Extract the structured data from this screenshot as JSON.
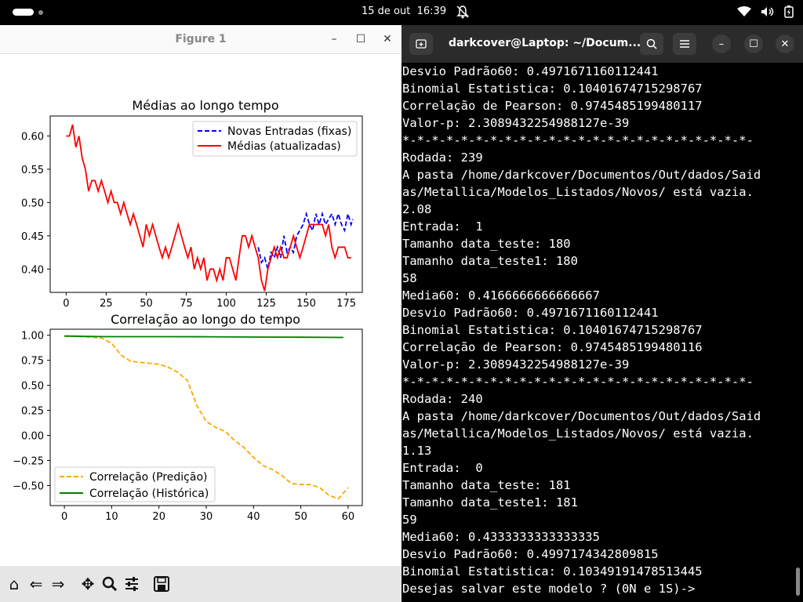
{
  "topbar": {
    "date": "15 de out",
    "time": "16:39"
  },
  "figure_window": {
    "title": "Figure 1",
    "toolbar": [
      "home-icon",
      "back-icon",
      "forward-icon",
      "pan-icon",
      "zoom-icon",
      "configure-icon",
      "save-icon"
    ]
  },
  "chart_data": [
    {
      "type": "line",
      "title": "Médias ao longo tempo",
      "xlim": [
        -10,
        185
      ],
      "ylim": [
        0.365,
        0.63
      ],
      "xticks": [
        0,
        25,
        50,
        75,
        100,
        125,
        150,
        175
      ],
      "yticks": [
        0.4,
        0.45,
        0.5,
        0.55,
        0.6
      ],
      "ytick_labels": [
        "0.40",
        "0.45",
        "0.50",
        "0.55",
        "0.60"
      ],
      "legend_position": "top-right",
      "series": [
        {
          "name": "Novas Entradas (fixas)",
          "color": "#0000ff",
          "style": "dashed",
          "x": [
            120,
            122,
            124,
            126,
            128,
            130,
            132,
            134,
            136,
            138,
            140,
            142,
            144,
            146,
            148,
            150,
            152,
            154,
            156,
            158,
            160,
            162,
            164,
            166,
            168,
            170,
            172,
            174,
            176,
            178,
            179
          ],
          "y": [
            0.433,
            0.41,
            0.417,
            0.4,
            0.425,
            0.417,
            0.433,
            0.417,
            0.45,
            0.425,
            0.433,
            0.425,
            0.45,
            0.458,
            0.467,
            0.483,
            0.467,
            0.458,
            0.483,
            0.467,
            0.483,
            0.467,
            0.475,
            0.483,
            0.467,
            0.483,
            0.467,
            0.458,
            0.483,
            0.467,
            0.475
          ]
        },
        {
          "name": "Médias (atualizadas)",
          "color": "#ff0000",
          "style": "solid",
          "x": [
            0,
            2,
            4,
            6,
            8,
            10,
            12,
            14,
            16,
            18,
            20,
            22,
            24,
            26,
            28,
            30,
            32,
            34,
            36,
            38,
            40,
            42,
            44,
            46,
            48,
            50,
            52,
            54,
            56,
            58,
            60,
            62,
            64,
            66,
            68,
            70,
            72,
            74,
            76,
            78,
            80,
            82,
            84,
            86,
            88,
            90,
            92,
            94,
            96,
            98,
            100,
            102,
            104,
            106,
            108,
            110,
            112,
            114,
            116,
            118,
            120,
            122,
            124,
            126,
            128,
            130,
            132,
            134,
            136,
            138,
            140,
            142,
            144,
            146,
            148,
            150,
            152,
            154,
            156,
            158,
            160,
            162,
            164,
            166,
            168,
            170,
            172,
            174,
            176,
            178
          ],
          "y": [
            0.6,
            0.6,
            0.617,
            0.583,
            0.6,
            0.567,
            0.55,
            0.517,
            0.533,
            0.533,
            0.517,
            0.533,
            0.517,
            0.5,
            0.517,
            0.5,
            0.5,
            0.483,
            0.5,
            0.483,
            0.467,
            0.483,
            0.467,
            0.45,
            0.433,
            0.467,
            0.45,
            0.467,
            0.45,
            0.433,
            0.417,
            0.433,
            0.417,
            0.433,
            0.45,
            0.467,
            0.45,
            0.433,
            0.417,
            0.433,
            0.4,
            0.417,
            0.4,
            0.417,
            0.383,
            0.4,
            0.4,
            0.383,
            0.4,
            0.383,
            0.417,
            0.417,
            0.4,
            0.383,
            0.417,
            0.45,
            0.45,
            0.433,
            0.45,
            0.433,
            0.417,
            0.383,
            0.367,
            0.4,
            0.417,
            0.433,
            0.417,
            0.433,
            0.417,
            0.417,
            0.433,
            0.45,
            0.433,
            0.417,
            0.433,
            0.45,
            0.467,
            0.467,
            0.467,
            0.467,
            0.467,
            0.45,
            0.467,
            0.433,
            0.417,
            0.433,
            0.433,
            0.433,
            0.417,
            0.417
          ]
        }
      ]
    },
    {
      "type": "line",
      "title": "Correlação ao longo do tempo",
      "xlim": [
        -3,
        63
      ],
      "ylim": [
        -0.7,
        1.06
      ],
      "xticks": [
        0,
        10,
        20,
        30,
        40,
        50,
        60
      ],
      "yticks": [
        -0.5,
        -0.25,
        0.0,
        0.25,
        0.5,
        0.75,
        1.0
      ],
      "ytick_labels": [
        "−0.50",
        "−0.25",
        "0.00",
        "0.25",
        "0.50",
        "0.75",
        "1.00"
      ],
      "legend_position": "lower-left",
      "series": [
        {
          "name": "Correlação (Predição)",
          "color": "#ffa500",
          "style": "dashed",
          "x": [
            0,
            2,
            4,
            6,
            8,
            10,
            12,
            14,
            16,
            18,
            20,
            22,
            24,
            26,
            28,
            30,
            32,
            34,
            36,
            38,
            40,
            42,
            44,
            46,
            48,
            50,
            52,
            54,
            56,
            58,
            60
          ],
          "y": [
            0.99,
            0.99,
            0.985,
            0.98,
            0.97,
            0.92,
            0.8,
            0.74,
            0.73,
            0.72,
            0.71,
            0.68,
            0.63,
            0.55,
            0.3,
            0.14,
            0.08,
            0.04,
            -0.05,
            -0.12,
            -0.22,
            -0.3,
            -0.34,
            -0.4,
            -0.48,
            -0.49,
            -0.49,
            -0.52,
            -0.6,
            -0.63,
            -0.52
          ]
        },
        {
          "name": "Correlação (Histórica)",
          "color": "#008000",
          "style": "solid",
          "x": [
            0,
            5,
            10,
            20,
            30,
            40,
            50,
            59
          ],
          "y": [
            0.992,
            0.988,
            0.986,
            0.986,
            0.985,
            0.982,
            0.98,
            0.978
          ]
        }
      ]
    }
  ],
  "terminal": {
    "title": "darkcover@Laptop: ~/Docum...",
    "lines": [
      "Desvio Padrão60: 0.4971671160112441",
      "Binomial Estatistica: 0.10401674715298767",
      "Correlação de Pearson: 0.9745485199480117",
      "Valor-p: 2.3089432254988127e-39",
      "*-*-*-*-*-*-*-*-*-*-*-*-*-*-*-*-*-*-*-*-*-*-*-*-",
      "Rodada: 239",
      "A pasta /home/darkcover/Documentos/Out/dados/Said",
      "as/Metallica/Modelos_Listados/Novos/ está vazia.",
      "2.08",
      "Entrada:  1",
      "Tamanho data_teste: 180",
      "Tamanho data_teste1: 180",
      "58",
      "Media60: 0.4166666666666667",
      "Desvio Padrão60: 0.4971671160112441",
      "Binomial Estatistica: 0.10401674715298767",
      "Correlação de Pearson: 0.9745485199480116",
      "Valor-p: 2.3089432254988127e-39",
      "*-*-*-*-*-*-*-*-*-*-*-*-*-*-*-*-*-*-*-*-*-*-*-*-",
      "Rodada: 240",
      "A pasta /home/darkcover/Documentos/Out/dados/Said",
      "as/Metallica/Modelos_Listados/Novos/ está vazia.",
      "1.13",
      "Entrada:  0",
      "Tamanho data_teste: 181",
      "Tamanho data_teste1: 181",
      "59",
      "Media60: 0.4333333333333335",
      "Desvio Padrão60: 0.4997174342809815",
      "Binomial Estatistica: 0.10349191478513445",
      "Desejas salvar este modelo ? (0N e 1S)->"
    ]
  }
}
